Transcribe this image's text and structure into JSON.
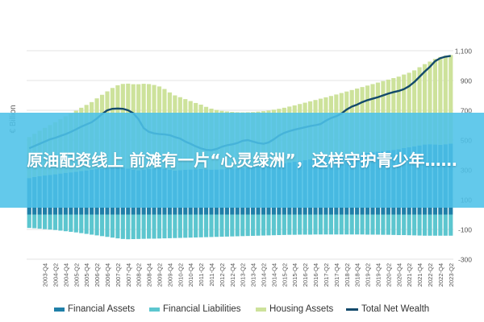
{
  "chart_data": {
    "type": "bar",
    "ylabel": "€ Billion",
    "ylim": [
      -300,
      1200
    ],
    "yticks": [
      -300,
      -100,
      100,
      300,
      500,
      700,
      900,
      1100
    ],
    "ytick_labels": [
      "-300",
      "-100",
      "100",
      "300",
      "500",
      "700",
      "900",
      "1,100"
    ],
    "grid": true,
    "legend_position": "bottom",
    "x_start": "2003-Q1",
    "x_end": "2023-Q2",
    "xtick_labels": [
      "2003-Q4",
      "2004-Q2",
      "2004-Q4",
      "2005-Q2",
      "2005-Q4",
      "2006-Q2",
      "2006-Q4",
      "2007-Q2",
      "2007-Q4",
      "2008-Q2",
      "2008-Q4",
      "2009-Q2",
      "2009-Q4",
      "2010-Q2",
      "2010-Q4",
      "2011-Q2",
      "2011-Q4",
      "2012-Q2",
      "2012-Q4",
      "2013-Q2",
      "2013-Q4",
      "2014-Q2",
      "2014-Q4",
      "2015-Q2",
      "2015-Q4",
      "2016-Q2",
      "2016-Q4",
      "2017-Q2",
      "2017-Q4",
      "2018-Q2",
      "2018-Q4",
      "2019-Q2",
      "2019-Q4",
      "2020-Q2",
      "2020-Q4",
      "2021-Q2",
      "2021-Q4",
      "2022-Q2",
      "2022-Q4",
      "2023-Q2"
    ],
    "series": [
      {
        "name": "Financial Assets",
        "type": "bar",
        "color": "#1f7fa8",
        "values": [
          245,
          252,
          258,
          262,
          266,
          270,
          275,
          280,
          283,
          287,
          292,
          296,
          300,
          305,
          309,
          312,
          315,
          318,
          315,
          309,
          300,
          297,
          302,
          306,
          310,
          312,
          308,
          300,
          295,
          298,
          300,
          302,
          304,
          306,
          303,
          301,
          302,
          304,
          306,
          308,
          310,
          312,
          315,
          318,
          322,
          326,
          330,
          335,
          340,
          345,
          350,
          355,
          360,
          365,
          370,
          374,
          378,
          382,
          386,
          390,
          394,
          398,
          402,
          406,
          410,
          414,
          418,
          422,
          426,
          430,
          434,
          438,
          446,
          452,
          458,
          464,
          470,
          472,
          470,
          468,
          472,
          476
        ]
      },
      {
        "name": "Financial Liabilities",
        "type": "bar",
        "color": "#5cc6cf",
        "values": [
          -90,
          -92,
          -95,
          -98,
          -101,
          -104,
          -108,
          -112,
          -116,
          -120,
          -125,
          -130,
          -135,
          -140,
          -145,
          -150,
          -155,
          -160,
          -164,
          -166,
          -165,
          -164,
          -163,
          -162,
          -162,
          -161,
          -160,
          -159,
          -158,
          -157,
          -156,
          -155,
          -154,
          -153,
          -152,
          -151,
          -150,
          -149,
          -148,
          -147,
          -146,
          -145,
          -144,
          -143,
          -142,
          -141,
          -140,
          -139,
          -138,
          -137,
          -136,
          -136,
          -135,
          -135,
          -135,
          -134,
          -134,
          -134,
          -134,
          -134,
          -134,
          -134,
          -134,
          -134,
          -134,
          -135,
          -135,
          -135,
          -136,
          -136,
          -137,
          -138,
          -138,
          -139,
          -140,
          -141,
          -142,
          -142,
          -142,
          -142,
          -142,
          -142
        ]
      },
      {
        "name": "Housing Assets",
        "type": "bar",
        "color": "#cde29b",
        "values": [
          275,
          290,
          305,
          320,
          335,
          350,
          365,
          380,
          395,
          410,
          425,
          440,
          455,
          475,
          495,
          515,
          535,
          550,
          562,
          570,
          575,
          578,
          576,
          570,
          560,
          548,
          535,
          520,
          505,
          490,
          475,
          460,
          445,
          432,
          420,
          410,
          400,
          392,
          386,
          381,
          377,
          374,
          372,
          370,
          369,
          368,
          368,
          369,
          370,
          372,
          375,
          378,
          382,
          386,
          390,
          395,
          400,
          405,
          410,
          416,
          422,
          428,
          434,
          440,
          446,
          452,
          458,
          464,
          470,
          476,
          482,
          488,
          494,
          500,
          510,
          525,
          540,
          555,
          575,
          590,
          595,
          595
        ]
      },
      {
        "name": "Total Net Wealth",
        "type": "line",
        "color": "#134a6b",
        "values": [
          445,
          460,
          475,
          490,
          505,
          515,
          528,
          540,
          555,
          572,
          590,
          605,
          620,
          645,
          675,
          700,
          710,
          712,
          710,
          700,
          680,
          640,
          580,
          555,
          545,
          540,
          538,
          533,
          520,
          510,
          490,
          475,
          458,
          444,
          434,
          432,
          440,
          455,
          465,
          471,
          480,
          495,
          500,
          490,
          480,
          475,
          484,
          505,
          530,
          548,
          560,
          570,
          578,
          586,
          594,
          600,
          608,
          630,
          648,
          660,
          678,
          705,
          725,
          738,
          755,
          768,
          778,
          788,
          800,
          812,
          822,
          830,
          842,
          862,
          890,
          925,
          960,
          992,
          1030,
          1050,
          1060,
          1065
        ]
      }
    ],
    "banner_text": "原油配资线上 前滩有一片“心灵绿洲”，这样守护青少年……"
  }
}
